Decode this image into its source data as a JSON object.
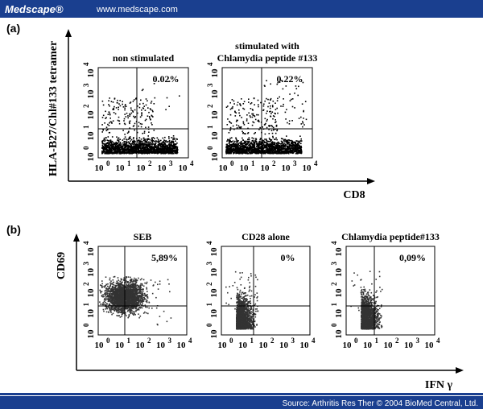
{
  "header": {
    "brand": "Medscape®",
    "url": "www.medscape.com"
  },
  "tick_base": "10",
  "tick_exponents": [
    "0",
    "1",
    "2",
    "3",
    "4"
  ],
  "panel_a": {
    "label": "(a)",
    "y_axis": "HLA-B27/Chl#133 tetramer",
    "x_axis": "CD8",
    "plots": [
      {
        "title": [
          "non stimulated"
        ],
        "percent": "0.02%"
      },
      {
        "title": [
          "stimulated with",
          "Chlamydia peptide #133"
        ],
        "percent": "0.22%"
      }
    ]
  },
  "panel_b": {
    "label": "(b)",
    "y_axis": "CD69",
    "x_axis": "IFN γ",
    "plots": [
      {
        "title": [
          "SEB"
        ],
        "percent": "5,89%"
      },
      {
        "title": [
          "CD28 alone"
        ],
        "percent": "0%"
      },
      {
        "title": [
          "Chlamydia peptide#133"
        ],
        "percent": "0,09%"
      }
    ]
  },
  "footer": {
    "source": "Source: Arthritis Res Ther © 2004 BioMed Central, Ltd."
  }
}
